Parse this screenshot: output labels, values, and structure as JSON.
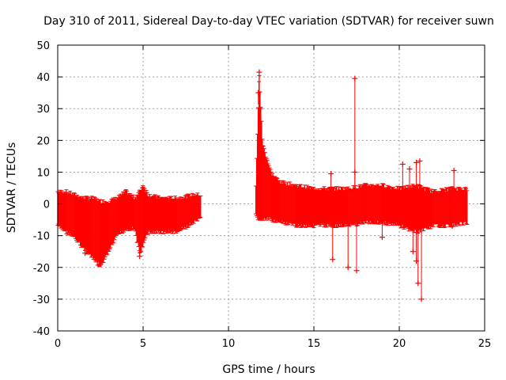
{
  "chart_data": {
    "type": "scatter",
    "title": "Day 310 of 2011, Sidereal Day-to-day VTEC variation (SDTVAR) for receiver suwn",
    "xlabel": "GPS time / hours",
    "ylabel": "SDTVAR / TECUs",
    "xlim": [
      0,
      25
    ],
    "ylim": [
      -40,
      50
    ],
    "xticks": [
      0,
      5,
      10,
      15,
      20,
      25
    ],
    "yticks": [
      -40,
      -30,
      -20,
      -10,
      0,
      10,
      20,
      30,
      40,
      50
    ],
    "grid": true,
    "color": "#ff0000",
    "marker": "+",
    "series": [
      {
        "name": "SDTVAR",
        "band_envelope": [
          {
            "x": 0.0,
            "lo": -6,
            "hi": 3
          },
          {
            "x": 0.5,
            "lo": -8,
            "hi": 3
          },
          {
            "x": 1.0,
            "lo": -10,
            "hi": 2
          },
          {
            "x": 1.5,
            "lo": -13,
            "hi": 1
          },
          {
            "x": 2.0,
            "lo": -16,
            "hi": 1
          },
          {
            "x": 2.5,
            "lo": -19,
            "hi": 0
          },
          {
            "x": 3.0,
            "lo": -14,
            "hi": 0
          },
          {
            "x": 3.5,
            "lo": -9,
            "hi": 1
          },
          {
            "x": 4.0,
            "lo": -7,
            "hi": 3
          },
          {
            "x": 4.5,
            "lo": -7,
            "hi": 1
          },
          {
            "x": 4.8,
            "lo": -15,
            "hi": 3
          },
          {
            "x": 5.0,
            "lo": -12,
            "hi": 5
          },
          {
            "x": 5.3,
            "lo": -8,
            "hi": 2
          },
          {
            "x": 6.0,
            "lo": -8,
            "hi": 1
          },
          {
            "x": 7.0,
            "lo": -8,
            "hi": 1
          },
          {
            "x": 8.0,
            "lo": -5,
            "hi": 2
          },
          {
            "x": 8.4,
            "lo": -4,
            "hi": 2
          },
          {
            "x": 11.6,
            "lo": -3,
            "hi": 5
          },
          {
            "x": 11.8,
            "lo": -4,
            "hi": 40
          },
          {
            "x": 12.0,
            "lo": -4,
            "hi": 18
          },
          {
            "x": 12.5,
            "lo": -4,
            "hi": 9
          },
          {
            "x": 13.0,
            "lo": -5,
            "hi": 6
          },
          {
            "x": 14.0,
            "lo": -6,
            "hi": 5
          },
          {
            "x": 15.0,
            "lo": -6,
            "hi": 4
          },
          {
            "x": 16.0,
            "lo": -6,
            "hi": 4
          },
          {
            "x": 17.0,
            "lo": -6,
            "hi": 4
          },
          {
            "x": 18.0,
            "lo": -5,
            "hi": 5
          },
          {
            "x": 19.0,
            "lo": -5,
            "hi": 5
          },
          {
            "x": 20.0,
            "lo": -6,
            "hi": 4
          },
          {
            "x": 21.0,
            "lo": -8,
            "hi": 5
          },
          {
            "x": 22.0,
            "lo": -6,
            "hi": 3
          },
          {
            "x": 23.0,
            "lo": -6,
            "hi": 4
          },
          {
            "x": 24.0,
            "lo": -5,
            "hi": 4
          }
        ],
        "outliers": [
          {
            "x": 11.8,
            "y": 41.5
          },
          {
            "x": 11.75,
            "y": 35
          },
          {
            "x": 11.85,
            "y": 30
          },
          {
            "x": 17.4,
            "y": 39.5
          },
          {
            "x": 16.0,
            "y": 9.5
          },
          {
            "x": 16.1,
            "y": -17.5
          },
          {
            "x": 17.0,
            "y": -20
          },
          {
            "x": 17.5,
            "y": -21
          },
          {
            "x": 17.4,
            "y": 10
          },
          {
            "x": 19.0,
            "y": -10.5
          },
          {
            "x": 20.2,
            "y": 12.5
          },
          {
            "x": 20.6,
            "y": 11
          },
          {
            "x": 21.0,
            "y": 13
          },
          {
            "x": 21.2,
            "y": 13.5
          },
          {
            "x": 20.8,
            "y": -15
          },
          {
            "x": 21.0,
            "y": -18
          },
          {
            "x": 21.1,
            "y": -25
          },
          {
            "x": 21.3,
            "y": -30
          },
          {
            "x": 23.2,
            "y": 10.5
          },
          {
            "x": 23.1,
            "y": -7
          },
          {
            "x": 1.6,
            "y": -15.5
          },
          {
            "x": 2.5,
            "y": -19
          },
          {
            "x": 4.8,
            "y": -16.5
          }
        ]
      }
    ]
  }
}
